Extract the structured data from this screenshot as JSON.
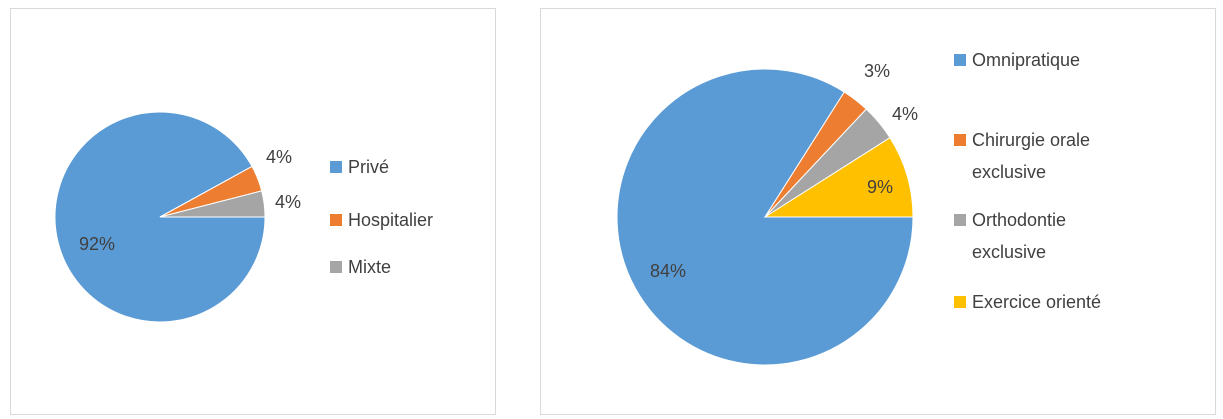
{
  "chart_data": [
    {
      "type": "pie",
      "categories": [
        "Privé",
        "Hospitalier",
        "Mixte"
      ],
      "values": [
        92,
        4,
        4
      ],
      "value_labels": [
        "92%",
        "4%",
        "4%"
      ],
      "colors": [
        "#5b9bd5",
        "#ed7d31",
        "#a5a5a5"
      ],
      "legend": "right"
    },
    {
      "type": "pie",
      "categories": [
        "Omnipratique",
        "Chirurgie orale exclusive",
        "Orthodontie exclusive",
        "Exercice orienté"
      ],
      "values": [
        84,
        3,
        4,
        9
      ],
      "value_labels": [
        "84%",
        "3%",
        "4%",
        "9%"
      ],
      "colors": [
        "#5b9bd5",
        "#ed7d31",
        "#a5a5a5",
        "#ffc000"
      ],
      "legend": "right"
    }
  ]
}
